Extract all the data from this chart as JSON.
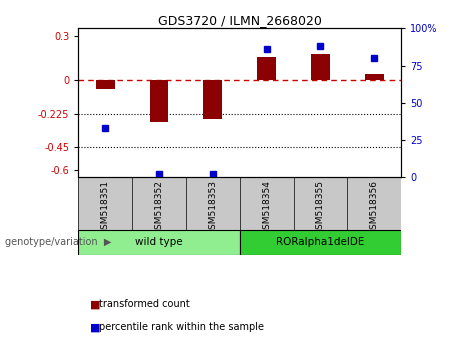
{
  "title": "GDS3720 / ILMN_2668020",
  "samples": [
    "GSM518351",
    "GSM518352",
    "GSM518353",
    "GSM518354",
    "GSM518355",
    "GSM518356"
  ],
  "red_bars": [
    -0.06,
    -0.28,
    -0.26,
    0.16,
    0.18,
    0.04
  ],
  "blue_dots": [
    33,
    2,
    2,
    86,
    88,
    80
  ],
  "ylim_left": [
    -0.65,
    0.35
  ],
  "ylim_right": [
    0,
    100
  ],
  "yticks_left": [
    0.3,
    0,
    -0.225,
    -0.45,
    -0.6
  ],
  "yticks_right": [
    100,
    75,
    50,
    25,
    0
  ],
  "hline_y": 0,
  "dotted_lines": [
    -0.225,
    -0.45
  ],
  "bar_color": "#8B0000",
  "dot_color": "#0000CD",
  "dashed_line_color": "#CC0000",
  "groups": [
    {
      "label": "wild type",
      "indices": [
        0,
        1,
        2
      ],
      "color": "#90EE90"
    },
    {
      "label": "RORalpha1delDE",
      "indices": [
        3,
        4,
        5
      ],
      "color": "#32CD32"
    }
  ],
  "group_label": "genotype/variation",
  "legend_red": "transformed count",
  "legend_blue": "percentile rank within the sample",
  "bar_width": 0.35,
  "bg_color": "#FFFFFF",
  "plot_bg": "#FFFFFF",
  "tick_bg": "#C8C8C8"
}
